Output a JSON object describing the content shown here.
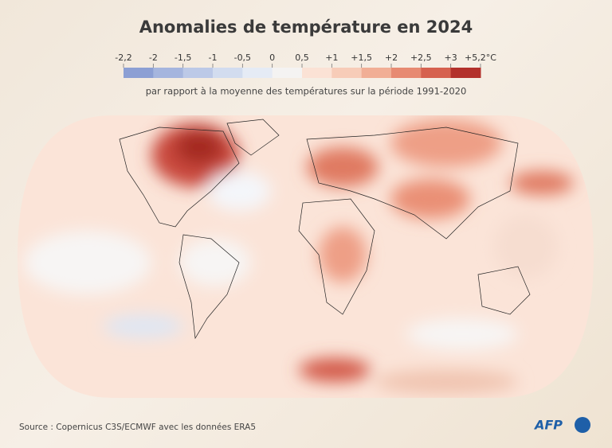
{
  "header": {
    "title": "Anomalies de température en 2024",
    "subtitle": "par rapport à la moyenne des températures sur la période 1991-2020"
  },
  "legend": {
    "ticks": [
      "-2,2",
      "-2",
      "-1,5",
      "-1",
      "-0,5",
      "0",
      "0,5",
      "+1",
      "+1,5",
      "+2",
      "+2,5",
      "+3",
      "+5,2°C"
    ],
    "colors": [
      "#8c9fd4",
      "#a5b5de",
      "#bcc9e7",
      "#d2dcef",
      "#e5ebf5",
      "#f4f3f2",
      "#fbe2d5",
      "#f7ccb8",
      "#f1ae95",
      "#e78a72",
      "#d6614f",
      "#b3312b"
    ]
  },
  "footer": {
    "source": "Source : Copernicus C3S/ECMWF avec les données ERA5",
    "logo": "AFP"
  }
}
